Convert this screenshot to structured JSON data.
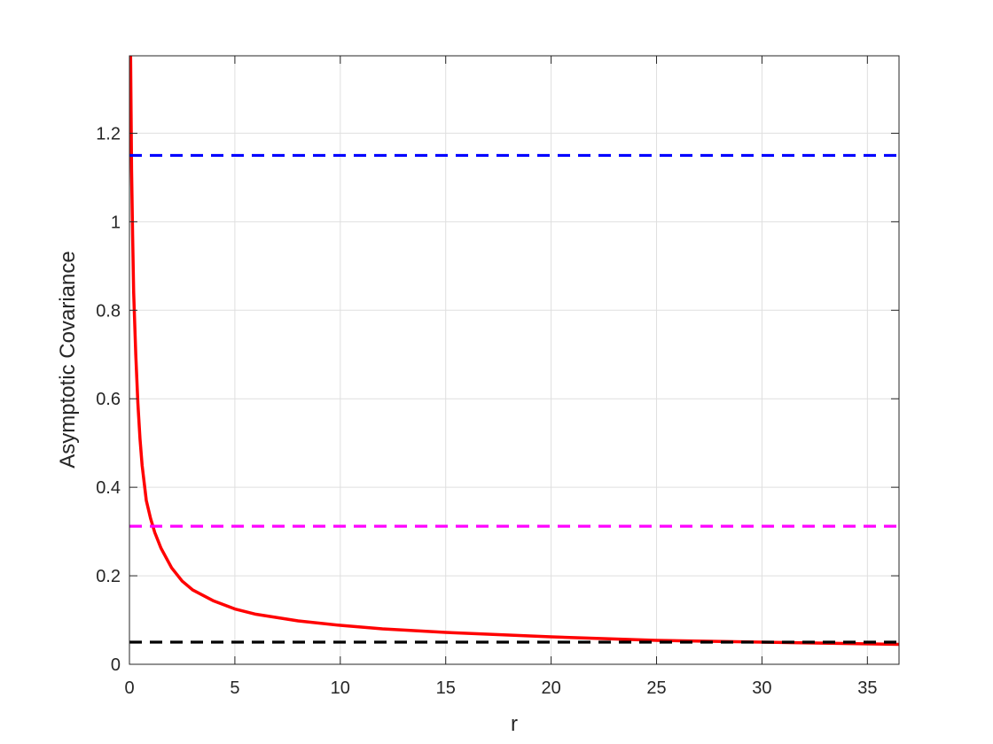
{
  "chart_data": {
    "type": "line",
    "xlabel": "r",
    "ylabel": "Asymptotic Covariance",
    "xlim": [
      0,
      36.5
    ],
    "ylim": [
      0,
      1.375
    ],
    "grid": true,
    "x_ticks": [
      0,
      5,
      10,
      15,
      20,
      25,
      30,
      35
    ],
    "x_tick_labels": [
      "0",
      "5",
      "10",
      "15",
      "20",
      "25",
      "30",
      "35"
    ],
    "y_ticks": [
      0,
      0.2,
      0.4,
      0.6,
      0.8,
      1,
      1.2
    ],
    "y_tick_labels": [
      "0",
      "0.2",
      "0.4",
      "0.6",
      "0.8",
      "1",
      "1.2"
    ],
    "series": [
      {
        "style": "solid",
        "color": "#ff0000",
        "x": [
          0.05,
          0.1,
          0.15,
          0.2,
          0.3,
          0.4,
          0.5,
          0.6,
          0.8,
          1,
          1.2,
          1.5,
          2,
          2.5,
          3,
          4,
          5,
          6,
          8,
          10,
          12,
          15,
          20,
          25,
          30,
          36.5
        ],
        "values": [
          1.4,
          1.12,
          0.97,
          0.84,
          0.7,
          0.59,
          0.51,
          0.45,
          0.37,
          0.33,
          0.298,
          0.262,
          0.218,
          0.188,
          0.168,
          0.143,
          0.125,
          0.113,
          0.098,
          0.088,
          0.08,
          0.072,
          0.062,
          0.054,
          0.05,
          0.045
        ]
      },
      {
        "style": "dashed",
        "color": "#0000ff",
        "x": [
          0,
          36.5
        ],
        "values": [
          1.15,
          1.15
        ]
      },
      {
        "style": "dashed",
        "color": "#ff00ff",
        "x": [
          0,
          36.5
        ],
        "values": [
          0.312,
          0.312
        ]
      },
      {
        "style": "dashed",
        "color": "#000000",
        "x": [
          0,
          36.5
        ],
        "values": [
          0.05,
          0.05
        ]
      }
    ]
  }
}
